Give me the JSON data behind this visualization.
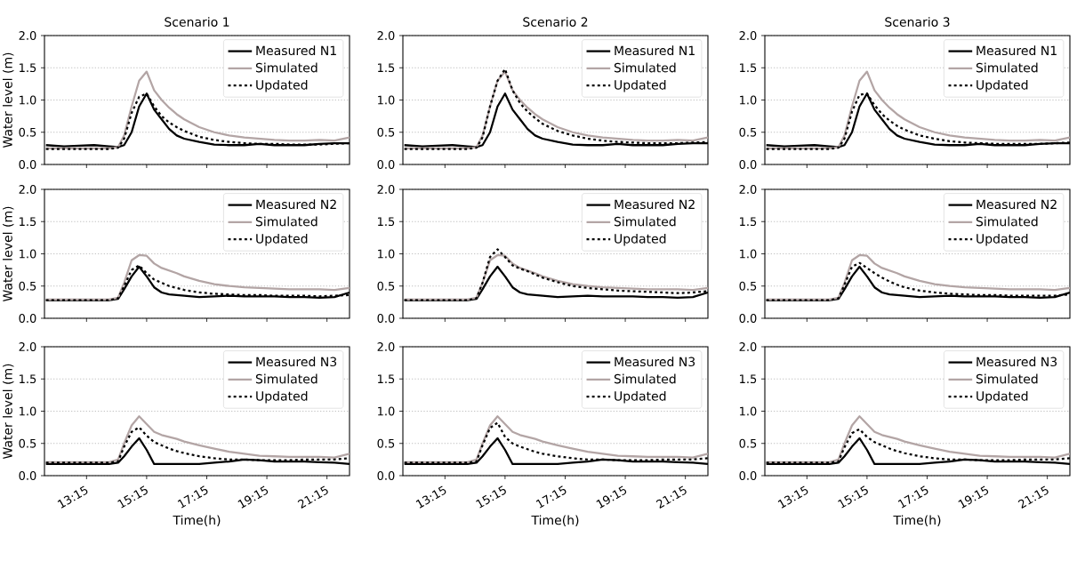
{
  "chart_data": [
    {
      "type": "line",
      "title": "Scenario 1",
      "ylabel": "Water level (m)",
      "tick_labels": "y",
      "grid": "y",
      "legend": "top right",
      "xlim": [
        11.85,
        22.0
      ],
      "ylim": [
        0,
        2
      ],
      "xticks": [
        {
          "value": 13.25,
          "label": null
        },
        {
          "value": 15.25,
          "label": null
        },
        {
          "value": 17.25,
          "label": null
        },
        {
          "value": 19.25,
          "label": null
        },
        {
          "value": 21.25,
          "label": null
        }
      ],
      "yticks": [
        {
          "value": 0,
          "label": "0.0"
        },
        {
          "value": 0.5,
          "label": "0.5"
        },
        {
          "value": 1,
          "label": "1.0"
        },
        {
          "value": 1.5,
          "label": "1.5"
        },
        {
          "value": 2,
          "label": "2.0"
        }
      ],
      "x": [
        11.9,
        12.5,
        13,
        13.5,
        14,
        14.3,
        14.5,
        14.75,
        15,
        15.25,
        15.5,
        15.75,
        16,
        16.25,
        16.5,
        17,
        17.5,
        18,
        18.5,
        19,
        19.5,
        20,
        20.5,
        21,
        21.5,
        22
      ],
      "series": [
        {
          "name": "Measured N1",
          "color": "#000000",
          "line_style": "solid",
          "values": [
            0.3,
            0.28,
            0.29,
            0.3,
            0.28,
            0.27,
            0.3,
            0.5,
            0.9,
            1.1,
            0.85,
            0.7,
            0.55,
            0.45,
            0.4,
            0.35,
            0.31,
            0.3,
            0.3,
            0.32,
            0.3,
            0.3,
            0.3,
            0.32,
            0.33,
            0.33
          ]
        },
        {
          "name": "Simulated",
          "color": "#b3a5a5",
          "line_style": "solid",
          "values": [
            0.25,
            0.25,
            0.25,
            0.25,
            0.25,
            0.27,
            0.45,
            0.9,
            1.3,
            1.44,
            1.15,
            1.0,
            0.88,
            0.78,
            0.7,
            0.58,
            0.5,
            0.45,
            0.42,
            0.4,
            0.38,
            0.37,
            0.37,
            0.38,
            0.37,
            0.42
          ]
        },
        {
          "name": "Updated",
          "color": "#000000",
          "line_style": "dotted",
          "values": [
            0.24,
            0.24,
            0.24,
            0.24,
            0.24,
            0.26,
            0.4,
            0.8,
            1.05,
            1.1,
            0.9,
            0.75,
            0.65,
            0.58,
            0.52,
            0.43,
            0.38,
            0.35,
            0.33,
            0.32,
            0.32,
            0.31,
            0.31,
            0.31,
            0.32,
            0.33
          ]
        }
      ]
    },
    {
      "type": "line",
      "title": "Scenario 2",
      "tick_labels": "y",
      "grid": "y",
      "legend": "top right",
      "xlim": [
        11.85,
        22.0
      ],
      "ylim": [
        0,
        2
      ],
      "xticks": [
        {
          "value": 13.25,
          "label": null
        },
        {
          "value": 15.25,
          "label": null
        },
        {
          "value": 17.25,
          "label": null
        },
        {
          "value": 19.25,
          "label": null
        },
        {
          "value": 21.25,
          "label": null
        }
      ],
      "yticks": [
        {
          "value": 0,
          "label": "0.0"
        },
        {
          "value": 0.5,
          "label": "0.5"
        },
        {
          "value": 1,
          "label": "1.0"
        },
        {
          "value": 1.5,
          "label": "1.5"
        },
        {
          "value": 2,
          "label": "2.0"
        }
      ],
      "x": [
        11.9,
        12.5,
        13,
        13.5,
        14,
        14.3,
        14.5,
        14.75,
        15,
        15.25,
        15.5,
        15.75,
        16,
        16.25,
        16.5,
        17,
        17.5,
        18,
        18.5,
        19,
        19.5,
        20,
        20.5,
        21,
        21.5,
        22
      ],
      "series": [
        {
          "name": "Measured N1",
          "color": "#000000",
          "line_style": "solid",
          "values": [
            0.3,
            0.28,
            0.29,
            0.3,
            0.28,
            0.27,
            0.3,
            0.5,
            0.9,
            1.1,
            0.85,
            0.7,
            0.55,
            0.45,
            0.4,
            0.35,
            0.31,
            0.3,
            0.3,
            0.32,
            0.3,
            0.3,
            0.3,
            0.32,
            0.33,
            0.33
          ]
        },
        {
          "name": "Simulated",
          "color": "#b3a5a5",
          "line_style": "solid",
          "values": [
            0.25,
            0.25,
            0.25,
            0.25,
            0.25,
            0.27,
            0.45,
            0.9,
            1.3,
            1.44,
            1.15,
            1.0,
            0.88,
            0.78,
            0.7,
            0.58,
            0.5,
            0.45,
            0.42,
            0.4,
            0.38,
            0.37,
            0.37,
            0.38,
            0.37,
            0.42
          ]
        },
        {
          "name": "Updated",
          "color": "#000000",
          "line_style": "dotted",
          "values": [
            0.24,
            0.24,
            0.24,
            0.24,
            0.24,
            0.26,
            0.42,
            0.9,
            1.3,
            1.48,
            1.15,
            0.95,
            0.82,
            0.72,
            0.63,
            0.52,
            0.45,
            0.4,
            0.37,
            0.35,
            0.34,
            0.33,
            0.33,
            0.33,
            0.34,
            0.35
          ]
        }
      ]
    },
    {
      "type": "line",
      "title": "Scenario 3",
      "tick_labels": "y",
      "grid": "y",
      "legend": "top right",
      "xlim": [
        11.85,
        22.0
      ],
      "ylim": [
        0,
        2
      ],
      "xticks": [
        {
          "value": 13.25,
          "label": null
        },
        {
          "value": 15.25,
          "label": null
        },
        {
          "value": 17.25,
          "label": null
        },
        {
          "value": 19.25,
          "label": null
        },
        {
          "value": 21.25,
          "label": null
        }
      ],
      "yticks": [
        {
          "value": 0,
          "label": "0.0"
        },
        {
          "value": 0.5,
          "label": "0.5"
        },
        {
          "value": 1,
          "label": "1.0"
        },
        {
          "value": 1.5,
          "label": "1.5"
        },
        {
          "value": 2,
          "label": "2.0"
        }
      ],
      "x": [
        11.9,
        12.5,
        13,
        13.5,
        14,
        14.3,
        14.5,
        14.75,
        15,
        15.25,
        15.5,
        15.75,
        16,
        16.25,
        16.5,
        17,
        17.5,
        18,
        18.5,
        19,
        19.5,
        20,
        20.5,
        21,
        21.5,
        22
      ],
      "series": [
        {
          "name": "Measured N1",
          "color": "#000000",
          "line_style": "solid",
          "values": [
            0.3,
            0.28,
            0.29,
            0.3,
            0.28,
            0.27,
            0.3,
            0.5,
            0.9,
            1.1,
            0.85,
            0.7,
            0.55,
            0.45,
            0.4,
            0.35,
            0.31,
            0.3,
            0.3,
            0.32,
            0.3,
            0.3,
            0.3,
            0.32,
            0.33,
            0.33
          ]
        },
        {
          "name": "Simulated",
          "color": "#b3a5a5",
          "line_style": "solid",
          "values": [
            0.25,
            0.25,
            0.25,
            0.25,
            0.25,
            0.27,
            0.45,
            0.9,
            1.3,
            1.44,
            1.15,
            1.0,
            0.88,
            0.78,
            0.7,
            0.58,
            0.5,
            0.45,
            0.42,
            0.4,
            0.38,
            0.37,
            0.37,
            0.38,
            0.37,
            0.42
          ]
        },
        {
          "name": "Updated",
          "color": "#000000",
          "line_style": "dotted",
          "values": [
            0.24,
            0.24,
            0.24,
            0.24,
            0.24,
            0.26,
            0.4,
            0.82,
            1.08,
            1.1,
            0.92,
            0.78,
            0.68,
            0.6,
            0.54,
            0.45,
            0.4,
            0.36,
            0.34,
            0.33,
            0.32,
            0.32,
            0.32,
            0.32,
            0.33,
            0.34
          ]
        }
      ]
    },
    {
      "type": "line",
      "ylabel": "Water level (m)",
      "tick_labels": "y",
      "grid": "y",
      "legend": "top right",
      "xlim": [
        11.85,
        22.0
      ],
      "ylim": [
        0,
        2
      ],
      "xticks": [
        {
          "value": 13.25,
          "label": null
        },
        {
          "value": 15.25,
          "label": null
        },
        {
          "value": 17.25,
          "label": null
        },
        {
          "value": 19.25,
          "label": null
        },
        {
          "value": 21.25,
          "label": null
        }
      ],
      "yticks": [
        {
          "value": 0,
          "label": "0.0"
        },
        {
          "value": 0.5,
          "label": "0.5"
        },
        {
          "value": 1,
          "label": "1.0"
        },
        {
          "value": 1.5,
          "label": "1.5"
        },
        {
          "value": 2,
          "label": "2.0"
        }
      ],
      "x": [
        11.9,
        12.5,
        13,
        13.5,
        14,
        14.3,
        14.5,
        14.75,
        15,
        15.25,
        15.5,
        15.75,
        16,
        16.25,
        16.5,
        17,
        17.5,
        18,
        18.5,
        19,
        19.5,
        20,
        20.5,
        21,
        21.5,
        22
      ],
      "series": [
        {
          "name": "Measured N2",
          "color": "#000000",
          "line_style": "solid",
          "values": [
            0.28,
            0.28,
            0.28,
            0.28,
            0.28,
            0.3,
            0.45,
            0.65,
            0.8,
            0.65,
            0.48,
            0.4,
            0.37,
            0.36,
            0.35,
            0.33,
            0.34,
            0.35,
            0.34,
            0.34,
            0.34,
            0.33,
            0.33,
            0.32,
            0.33,
            0.4
          ]
        },
        {
          "name": "Simulated",
          "color": "#b3a5a5",
          "line_style": "solid",
          "values": [
            0.29,
            0.29,
            0.29,
            0.29,
            0.29,
            0.32,
            0.55,
            0.9,
            0.98,
            0.97,
            0.85,
            0.78,
            0.74,
            0.7,
            0.65,
            0.58,
            0.53,
            0.5,
            0.48,
            0.47,
            0.46,
            0.45,
            0.45,
            0.45,
            0.44,
            0.47
          ]
        },
        {
          "name": "Updated",
          "color": "#000000",
          "line_style": "dotted",
          "values": [
            0.28,
            0.28,
            0.28,
            0.28,
            0.28,
            0.31,
            0.5,
            0.75,
            0.82,
            0.7,
            0.6,
            0.55,
            0.5,
            0.47,
            0.44,
            0.4,
            0.38,
            0.37,
            0.36,
            0.36,
            0.35,
            0.35,
            0.35,
            0.34,
            0.35,
            0.36
          ]
        }
      ]
    },
    {
      "type": "line",
      "tick_labels": "y",
      "grid": "y",
      "legend": "top right",
      "xlim": [
        11.85,
        22.0
      ],
      "ylim": [
        0,
        2
      ],
      "xticks": [
        {
          "value": 13.25,
          "label": null
        },
        {
          "value": 15.25,
          "label": null
        },
        {
          "value": 17.25,
          "label": null
        },
        {
          "value": 19.25,
          "label": null
        },
        {
          "value": 21.25,
          "label": null
        }
      ],
      "yticks": [
        {
          "value": 0,
          "label": "0.0"
        },
        {
          "value": 0.5,
          "label": "0.5"
        },
        {
          "value": 1,
          "label": "1.0"
        },
        {
          "value": 1.5,
          "label": "1.5"
        },
        {
          "value": 2,
          "label": "2.0"
        }
      ],
      "x": [
        11.9,
        12.5,
        13,
        13.5,
        14,
        14.3,
        14.5,
        14.75,
        15,
        15.25,
        15.5,
        15.75,
        16,
        16.25,
        16.5,
        17,
        17.5,
        18,
        18.5,
        19,
        19.5,
        20,
        20.5,
        21,
        21.5,
        22
      ],
      "series": [
        {
          "name": "Measured N2",
          "color": "#000000",
          "line_style": "solid",
          "values": [
            0.28,
            0.28,
            0.28,
            0.28,
            0.28,
            0.3,
            0.45,
            0.65,
            0.8,
            0.65,
            0.48,
            0.4,
            0.37,
            0.36,
            0.35,
            0.33,
            0.34,
            0.35,
            0.34,
            0.34,
            0.34,
            0.33,
            0.33,
            0.32,
            0.33,
            0.4
          ]
        },
        {
          "name": "Simulated",
          "color": "#b3a5a5",
          "line_style": "solid",
          "values": [
            0.29,
            0.29,
            0.29,
            0.29,
            0.29,
            0.32,
            0.55,
            0.9,
            0.98,
            0.97,
            0.85,
            0.78,
            0.74,
            0.7,
            0.65,
            0.58,
            0.53,
            0.5,
            0.48,
            0.47,
            0.46,
            0.45,
            0.45,
            0.45,
            0.44,
            0.47
          ]
        },
        {
          "name": "Updated",
          "color": "#000000",
          "line_style": "dotted",
          "values": [
            0.28,
            0.28,
            0.28,
            0.28,
            0.28,
            0.31,
            0.55,
            0.95,
            1.07,
            0.95,
            0.82,
            0.77,
            0.73,
            0.68,
            0.63,
            0.56,
            0.5,
            0.47,
            0.45,
            0.43,
            0.42,
            0.41,
            0.4,
            0.39,
            0.4,
            0.42
          ]
        }
      ]
    },
    {
      "type": "line",
      "tick_labels": "y",
      "grid": "y",
      "legend": "top right",
      "xlim": [
        11.85,
        22.0
      ],
      "ylim": [
        0,
        2
      ],
      "xticks": [
        {
          "value": 13.25,
          "label": null
        },
        {
          "value": 15.25,
          "label": null
        },
        {
          "value": 17.25,
          "label": null
        },
        {
          "value": 19.25,
          "label": null
        },
        {
          "value": 21.25,
          "label": null
        }
      ],
      "yticks": [
        {
          "value": 0,
          "label": "0.0"
        },
        {
          "value": 0.5,
          "label": "0.5"
        },
        {
          "value": 1,
          "label": "1.0"
        },
        {
          "value": 1.5,
          "label": "1.5"
        },
        {
          "value": 2,
          "label": "2.0"
        }
      ],
      "x": [
        11.9,
        12.5,
        13,
        13.5,
        14,
        14.3,
        14.5,
        14.75,
        15,
        15.25,
        15.5,
        15.75,
        16,
        16.25,
        16.5,
        17,
        17.5,
        18,
        18.5,
        19,
        19.5,
        20,
        20.5,
        21,
        21.5,
        22
      ],
      "series": [
        {
          "name": "Measured N2",
          "color": "#000000",
          "line_style": "solid",
          "values": [
            0.28,
            0.28,
            0.28,
            0.28,
            0.28,
            0.3,
            0.45,
            0.65,
            0.8,
            0.65,
            0.48,
            0.4,
            0.37,
            0.36,
            0.35,
            0.33,
            0.34,
            0.35,
            0.34,
            0.34,
            0.34,
            0.33,
            0.33,
            0.32,
            0.33,
            0.4
          ]
        },
        {
          "name": "Simulated",
          "color": "#b3a5a5",
          "line_style": "solid",
          "values": [
            0.29,
            0.29,
            0.29,
            0.29,
            0.29,
            0.32,
            0.55,
            0.9,
            0.98,
            0.97,
            0.85,
            0.78,
            0.74,
            0.7,
            0.65,
            0.58,
            0.53,
            0.5,
            0.48,
            0.47,
            0.46,
            0.45,
            0.45,
            0.45,
            0.44,
            0.47
          ]
        },
        {
          "name": "Updated",
          "color": "#000000",
          "line_style": "dotted",
          "values": [
            0.28,
            0.28,
            0.28,
            0.28,
            0.28,
            0.31,
            0.52,
            0.8,
            0.86,
            0.78,
            0.7,
            0.63,
            0.57,
            0.52,
            0.48,
            0.43,
            0.4,
            0.38,
            0.37,
            0.36,
            0.36,
            0.35,
            0.35,
            0.35,
            0.35,
            0.37
          ]
        }
      ]
    },
    {
      "type": "line",
      "ylabel": "Water level (m)",
      "xlabel": "Time(h)",
      "grid": "y",
      "legend": "top right",
      "xlim": [
        11.85,
        22.0
      ],
      "ylim": [
        0,
        2
      ],
      "xticks": [
        {
          "value": 13.25,
          "label": "13:15"
        },
        {
          "value": 15.25,
          "label": "15:15"
        },
        {
          "value": 17.25,
          "label": "17:15"
        },
        {
          "value": 19.25,
          "label": "19:15"
        },
        {
          "value": 21.25,
          "label": "21:15"
        }
      ],
      "yticks": [
        {
          "value": 0,
          "label": "0.0"
        },
        {
          "value": 0.5,
          "label": "0.5"
        },
        {
          "value": 1,
          "label": "1.0"
        },
        {
          "value": 1.5,
          "label": "1.5"
        },
        {
          "value": 2,
          "label": "2.0"
        }
      ],
      "x": [
        11.9,
        12.5,
        13,
        13.5,
        14,
        14.3,
        14.5,
        14.75,
        15,
        15.25,
        15.5,
        15.75,
        16,
        16.25,
        16.5,
        17,
        17.5,
        18,
        18.5,
        19,
        19.5,
        20,
        20.5,
        21,
        21.5,
        22
      ],
      "series": [
        {
          "name": "Measured N3",
          "color": "#000000",
          "line_style": "solid",
          "values": [
            0.18,
            0.18,
            0.18,
            0.18,
            0.18,
            0.2,
            0.3,
            0.45,
            0.58,
            0.4,
            0.18,
            0.18,
            0.18,
            0.18,
            0.18,
            0.18,
            0.2,
            0.22,
            0.25,
            0.24,
            0.22,
            0.22,
            0.22,
            0.21,
            0.2,
            0.18
          ]
        },
        {
          "name": "Simulated",
          "color": "#b3a5a5",
          "line_style": "solid",
          "values": [
            0.21,
            0.21,
            0.21,
            0.21,
            0.21,
            0.25,
            0.5,
            0.78,
            0.92,
            0.8,
            0.68,
            0.63,
            0.6,
            0.57,
            0.53,
            0.47,
            0.42,
            0.37,
            0.34,
            0.31,
            0.3,
            0.29,
            0.29,
            0.29,
            0.28,
            0.34
          ]
        },
        {
          "name": "Updated",
          "color": "#000000",
          "line_style": "dotted",
          "values": [
            0.2,
            0.2,
            0.2,
            0.2,
            0.2,
            0.22,
            0.45,
            0.68,
            0.75,
            0.62,
            0.52,
            0.47,
            0.42,
            0.38,
            0.35,
            0.3,
            0.27,
            0.25,
            0.25,
            0.24,
            0.24,
            0.24,
            0.25,
            0.25,
            0.25,
            0.27
          ]
        }
      ]
    },
    {
      "type": "line",
      "xlabel": "Time(h)",
      "grid": "y",
      "legend": "top right",
      "xlim": [
        11.85,
        22.0
      ],
      "ylim": [
        0,
        2
      ],
      "xticks": [
        {
          "value": 13.25,
          "label": "13:15"
        },
        {
          "value": 15.25,
          "label": "15:15"
        },
        {
          "value": 17.25,
          "label": "17:15"
        },
        {
          "value": 19.25,
          "label": "19:15"
        },
        {
          "value": 21.25,
          "label": "21:15"
        }
      ],
      "yticks": [
        {
          "value": 0,
          "label": "0.0"
        },
        {
          "value": 0.5,
          "label": "0.5"
        },
        {
          "value": 1,
          "label": "1.0"
        },
        {
          "value": 1.5,
          "label": "1.5"
        },
        {
          "value": 2,
          "label": "2.0"
        }
      ],
      "x": [
        11.9,
        12.5,
        13,
        13.5,
        14,
        14.3,
        14.5,
        14.75,
        15,
        15.25,
        15.5,
        15.75,
        16,
        16.25,
        16.5,
        17,
        17.5,
        18,
        18.5,
        19,
        19.5,
        20,
        20.5,
        21,
        21.5,
        22
      ],
      "series": [
        {
          "name": "Measured N3",
          "color": "#000000",
          "line_style": "solid",
          "values": [
            0.18,
            0.18,
            0.18,
            0.18,
            0.18,
            0.2,
            0.3,
            0.45,
            0.58,
            0.4,
            0.18,
            0.18,
            0.18,
            0.18,
            0.18,
            0.18,
            0.2,
            0.22,
            0.25,
            0.24,
            0.22,
            0.22,
            0.22,
            0.21,
            0.2,
            0.18
          ]
        },
        {
          "name": "Simulated",
          "color": "#b3a5a5",
          "line_style": "solid",
          "values": [
            0.21,
            0.21,
            0.21,
            0.21,
            0.21,
            0.25,
            0.5,
            0.78,
            0.92,
            0.8,
            0.68,
            0.63,
            0.6,
            0.57,
            0.53,
            0.47,
            0.42,
            0.37,
            0.34,
            0.31,
            0.3,
            0.29,
            0.29,
            0.29,
            0.28,
            0.34
          ]
        },
        {
          "name": "Updated",
          "color": "#000000",
          "line_style": "dotted",
          "values": [
            0.2,
            0.2,
            0.2,
            0.2,
            0.2,
            0.22,
            0.47,
            0.74,
            0.82,
            0.6,
            0.5,
            0.45,
            0.41,
            0.37,
            0.34,
            0.3,
            0.27,
            0.25,
            0.25,
            0.24,
            0.24,
            0.24,
            0.25,
            0.25,
            0.25,
            0.27
          ]
        }
      ]
    },
    {
      "type": "line",
      "xlabel": "Time(h)",
      "grid": "y",
      "legend": "top right",
      "xlim": [
        11.85,
        22.0
      ],
      "ylim": [
        0,
        2
      ],
      "xticks": [
        {
          "value": 13.25,
          "label": "13:15"
        },
        {
          "value": 15.25,
          "label": "15:15"
        },
        {
          "value": 17.25,
          "label": "17:15"
        },
        {
          "value": 19.25,
          "label": "19:15"
        },
        {
          "value": 21.25,
          "label": "21:15"
        }
      ],
      "yticks": [
        {
          "value": 0,
          "label": "0.0"
        },
        {
          "value": 0.5,
          "label": "0.5"
        },
        {
          "value": 1,
          "label": "1.0"
        },
        {
          "value": 1.5,
          "label": "1.5"
        },
        {
          "value": 2,
          "label": "2.0"
        }
      ],
      "x": [
        11.9,
        12.5,
        13,
        13.5,
        14,
        14.3,
        14.5,
        14.75,
        15,
        15.25,
        15.5,
        15.75,
        16,
        16.25,
        16.5,
        17,
        17.5,
        18,
        18.5,
        19,
        19.5,
        20,
        20.5,
        21,
        21.5,
        22
      ],
      "series": [
        {
          "name": "Measured N3",
          "color": "#000000",
          "line_style": "solid",
          "values": [
            0.18,
            0.18,
            0.18,
            0.18,
            0.18,
            0.2,
            0.3,
            0.45,
            0.58,
            0.4,
            0.18,
            0.18,
            0.18,
            0.18,
            0.18,
            0.18,
            0.2,
            0.22,
            0.25,
            0.24,
            0.22,
            0.22,
            0.22,
            0.21,
            0.2,
            0.18
          ]
        },
        {
          "name": "Simulated",
          "color": "#b3a5a5",
          "line_style": "solid",
          "values": [
            0.21,
            0.21,
            0.21,
            0.21,
            0.21,
            0.25,
            0.5,
            0.78,
            0.92,
            0.8,
            0.68,
            0.63,
            0.6,
            0.57,
            0.53,
            0.47,
            0.42,
            0.37,
            0.34,
            0.31,
            0.3,
            0.29,
            0.29,
            0.29,
            0.28,
            0.34
          ]
        },
        {
          "name": "Updated",
          "color": "#000000",
          "line_style": "dotted",
          "values": [
            0.2,
            0.2,
            0.2,
            0.2,
            0.2,
            0.22,
            0.44,
            0.66,
            0.72,
            0.6,
            0.52,
            0.47,
            0.42,
            0.38,
            0.35,
            0.3,
            0.27,
            0.25,
            0.25,
            0.24,
            0.24,
            0.24,
            0.25,
            0.25,
            0.25,
            0.27
          ]
        }
      ]
    }
  ]
}
